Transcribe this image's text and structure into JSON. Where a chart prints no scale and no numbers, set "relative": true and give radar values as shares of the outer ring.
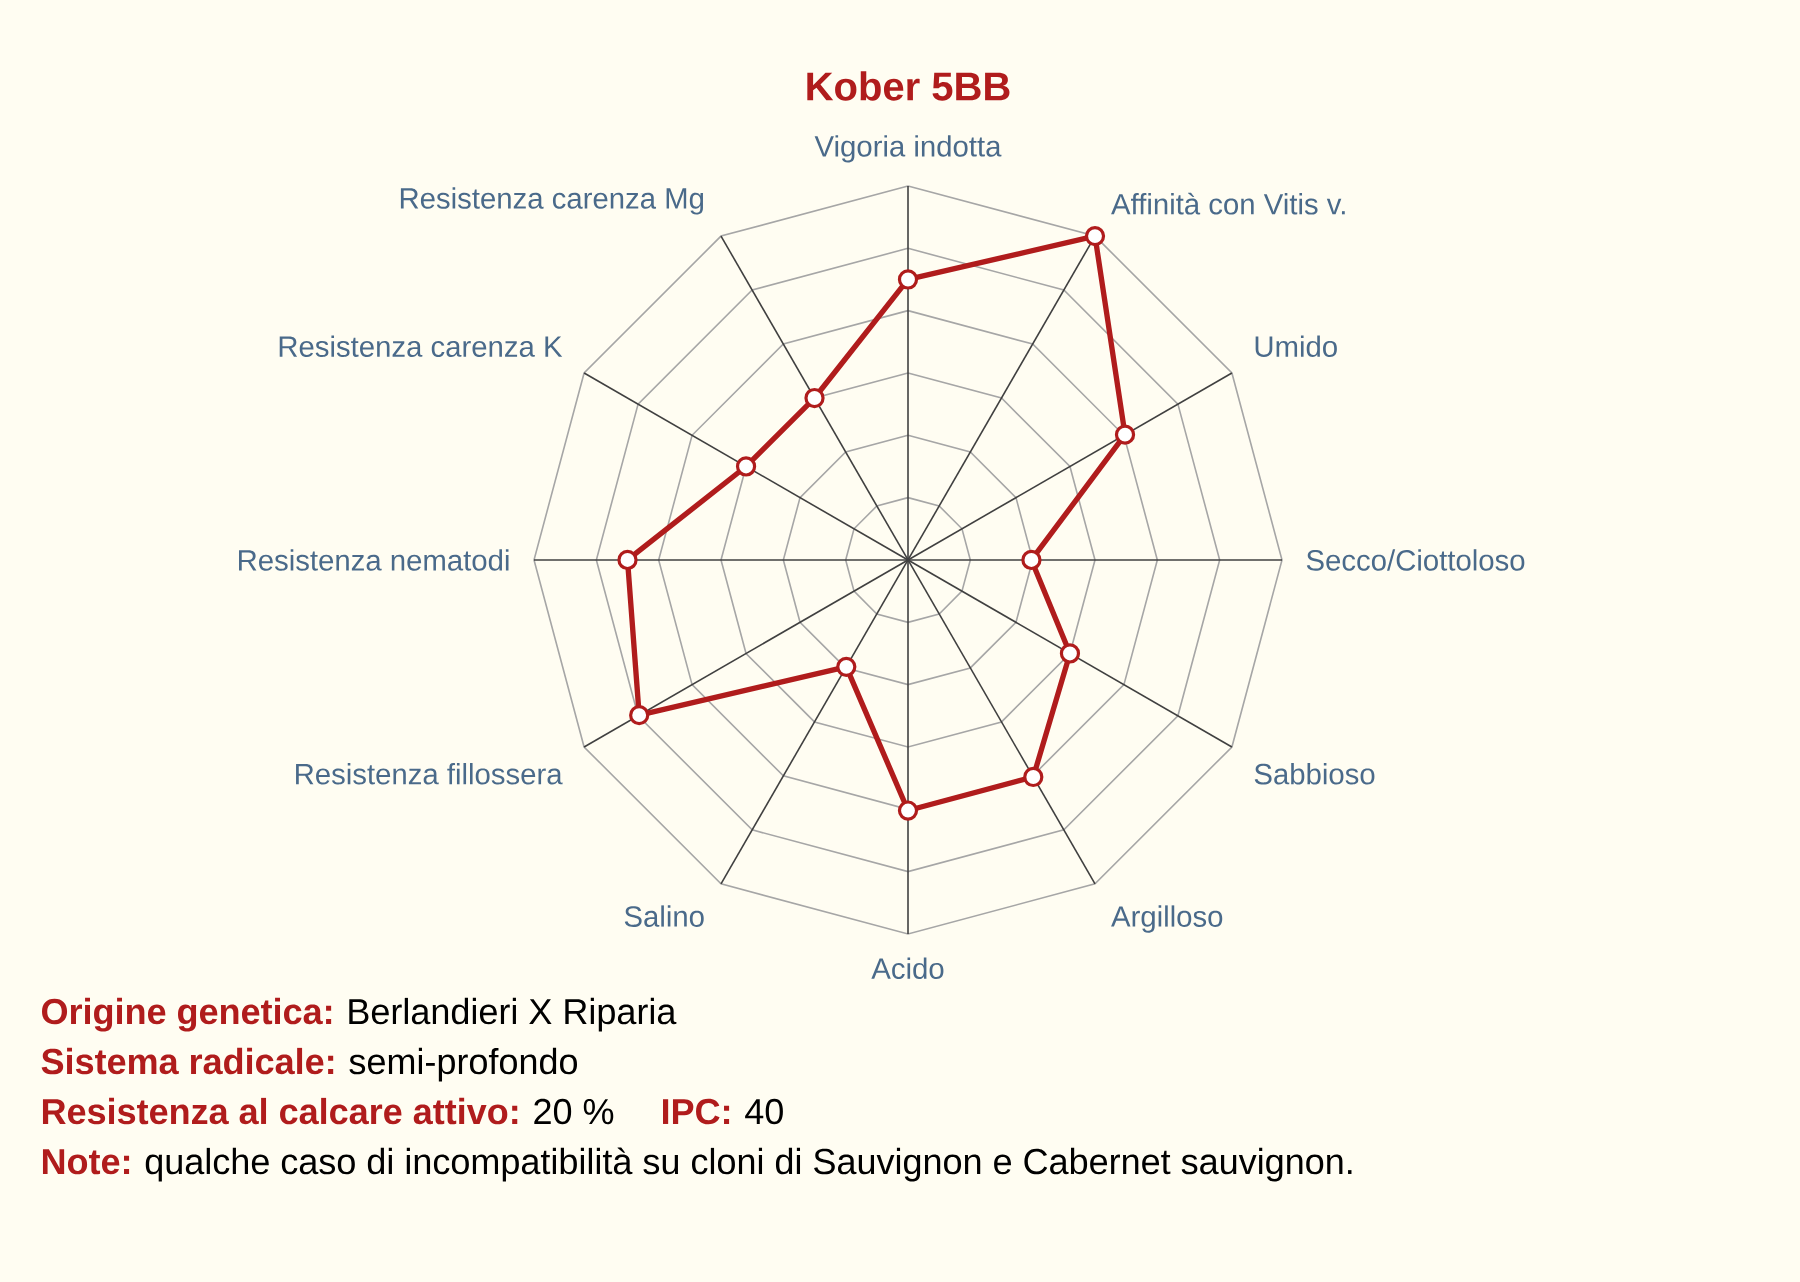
{
  "chart_data": {
    "type": "radar",
    "title": "Kober 5BB",
    "categories": [
      "Vigoria indotta",
      "Affinità con Vitis v.",
      "Umido",
      "Secco/Ciottoloso",
      "Sabbioso",
      "Argilloso",
      "Acido",
      "Salino",
      "Resistenza fillossera",
      "Resistenza nematodi",
      "Resistenza carenza K",
      "Resistenza carenza Mg"
    ],
    "relative": true,
    "grid": true,
    "marker": "circle",
    "series": [
      {
        "color": "#b01c1c",
        "values": [
          0.75,
          1.0,
          0.67,
          0.33,
          0.5,
          0.67,
          0.67,
          0.33,
          0.83,
          0.75,
          0.5,
          0.5
        ]
      }
    ],
    "annotations": [
      "Origine genetica:",
      "Berlandieri X Riparia",
      "Sistema radicale:",
      "semi-profondo",
      "Resistenza al calcare attivo:",
      "20 %",
      "IPC:",
      "40",
      "Note:",
      "qualche caso di incompatibilità su cloni di Sauvignon e Cabernet sauvignon."
    ]
  }
}
